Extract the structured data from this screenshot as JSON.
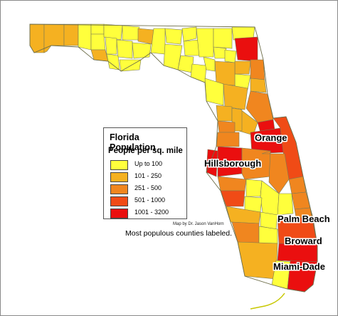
{
  "legend": {
    "title": "Florida Population",
    "subtitle": "People per sq. mile",
    "classes": [
      {
        "label": "Up to 100",
        "color": "#ffff3c"
      },
      {
        "label": "101 - 250",
        "color": "#f5b121"
      },
      {
        "label": "251 - 500",
        "color": "#f0861f"
      },
      {
        "label": "501 - 1000",
        "color": "#f04b16"
      },
      {
        "label": "1001 - 3200",
        "color": "#ea0f0f"
      }
    ]
  },
  "labels": {
    "orange": "Orange",
    "hillsborough": "Hillsborough",
    "palm_beach": "Palm Beach",
    "broward": "Broward",
    "miami_dade": "Miami-Dade"
  },
  "credit": "Map by Dr. Jason VanHorn",
  "note": "Most populous counties labeled."
}
